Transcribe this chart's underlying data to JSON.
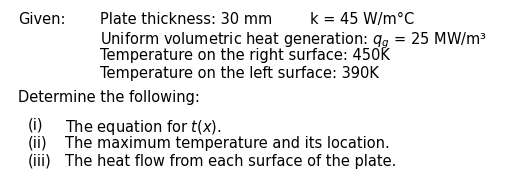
{
  "background_color": "#ffffff",
  "given_label": "Given:",
  "line1_left": "Plate thickness: 30 mm",
  "line1_right": "k = 45 W/m°C",
  "line2_prefix": "Uniform volumetric heat generation: ",
  "line2_math": "$q_g$",
  "line2_suffix": " = 25 MW/m³",
  "line3": "Temperature on the right surface: 450K",
  "line4": "Temperature on the left surface: 390K",
  "determine": "Determine the following:",
  "item1_num": "(i)",
  "item1_pre": "The equation for ",
  "item1_italic_t": "t",
  "item1_paren_open": "(",
  "item1_italic_x": "x",
  "item1_paren_close": ").",
  "item2_num": "(ii)",
  "item2_text": "The maximum temperature and its location.",
  "item3_num": "(iii)",
  "item3_text": "The heat flow from each surface of the plate.",
  "font_size": 10.5,
  "font_family": "DejaVu Sans"
}
